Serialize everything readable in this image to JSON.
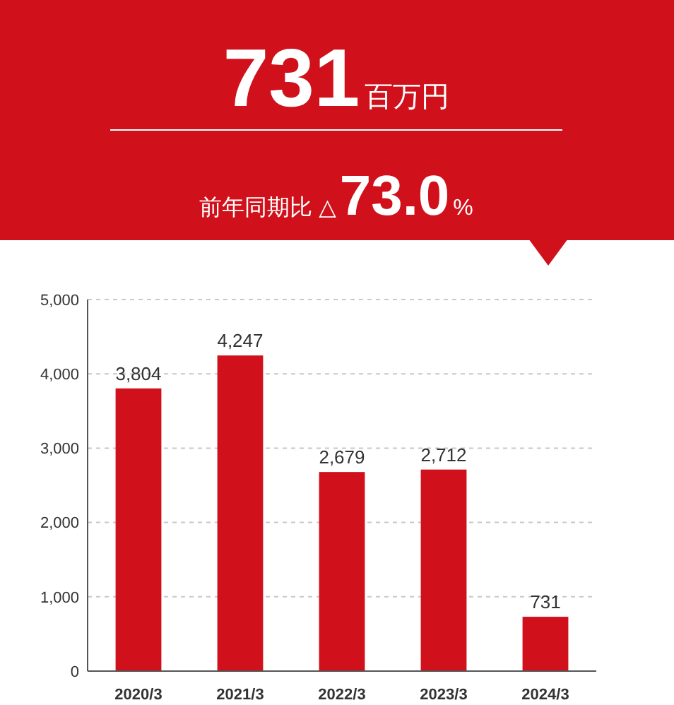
{
  "chart_data": {
    "type": "bar",
    "title": "731百万円",
    "subtitle": "前年同期比 △73.0%",
    "categories": [
      "2020/3",
      "2021/3",
      "2022/3",
      "2023/3",
      "2024/3"
    ],
    "values": [
      3804,
      4247,
      2679,
      2712,
      731
    ],
    "color": "#d0111b",
    "value_labels": [
      "3,804",
      "4,247",
      "2,679",
      "2,712",
      "731"
    ],
    "ylim": [
      0,
      5000
    ],
    "yticks": [
      {
        "value": 0,
        "label": "0"
      },
      {
        "value": 1000,
        "label": "1,000"
      },
      {
        "value": 2000,
        "label": "2,000"
      },
      {
        "value": 3000,
        "label": "3,000"
      },
      {
        "value": 4000,
        "label": "4,000"
      },
      {
        "value": 5000,
        "label": "5,000"
      }
    ],
    "grid": "y"
  }
}
